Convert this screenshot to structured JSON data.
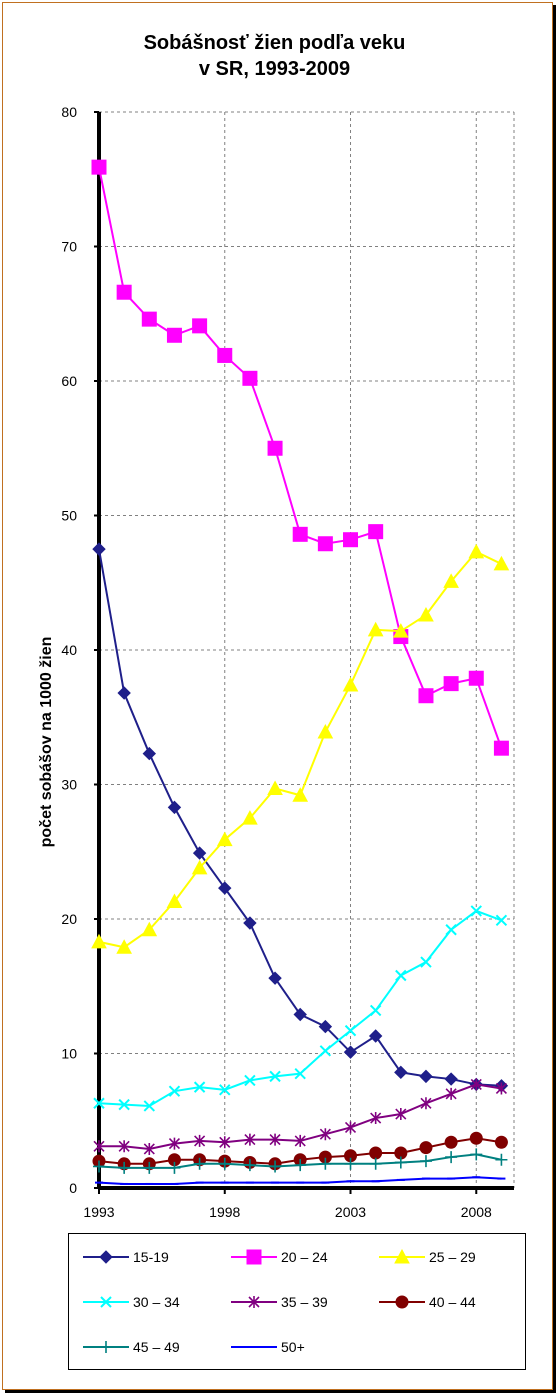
{
  "chart_data": {
    "type": "line",
    "title": [
      "Sobášnosť žien podľa veku",
      "v SR, 1993-2009"
    ],
    "ylabel": "počet sobášov na 1000 žien",
    "xlabel": "",
    "ylim": [
      0,
      80
    ],
    "yticks": [
      0,
      10,
      20,
      30,
      40,
      50,
      60,
      70,
      80
    ],
    "xlim": [
      1993,
      2009.5
    ],
    "xticks": [
      1993,
      1998,
      2003,
      2008
    ],
    "grid": "dashed",
    "legend_position": "bottom",
    "x": [
      1993,
      1994,
      1995,
      1996,
      1997,
      1998,
      1999,
      2000,
      2001,
      2002,
      2003,
      2004,
      2005,
      2006,
      2007,
      2008,
      2009
    ],
    "series": [
      {
        "name": "15-19",
        "color": "#1f1f8a",
        "marker": "diamond",
        "values": [
          47.5,
          36.8,
          32.3,
          28.3,
          24.9,
          22.3,
          19.7,
          15.6,
          12.9,
          12.0,
          10.1,
          11.3,
          8.6,
          8.3,
          8.1,
          7.7,
          7.6
        ]
      },
      {
        "name": "20 – 24",
        "color": "#ff00ff",
        "marker": "square",
        "values": [
          75.9,
          66.6,
          64.6,
          63.4,
          64.1,
          61.9,
          60.2,
          55.0,
          48.6,
          47.9,
          48.2,
          48.8,
          41.0,
          36.6,
          37.5,
          37.9,
          32.7
        ]
      },
      {
        "name": "25 – 29",
        "color": "#ffff00",
        "marker": "triangle",
        "values": [
          18.3,
          17.9,
          19.2,
          21.3,
          23.8,
          25.9,
          27.5,
          29.7,
          29.2,
          33.9,
          37.4,
          41.5,
          41.4,
          42.6,
          45.1,
          47.3,
          46.4
        ]
      },
      {
        "name": "30 – 34",
        "color": "#00ffff",
        "marker": "x",
        "values": [
          6.3,
          6.2,
          6.1,
          7.2,
          7.5,
          7.3,
          8.0,
          8.3,
          8.5,
          10.2,
          11.7,
          13.2,
          15.8,
          16.8,
          19.2,
          20.6,
          19.9
        ]
      },
      {
        "name": "35 – 39",
        "color": "#800080",
        "marker": "star",
        "values": [
          3.1,
          3.1,
          2.9,
          3.3,
          3.5,
          3.4,
          3.6,
          3.6,
          3.5,
          4.0,
          4.5,
          5.2,
          5.5,
          6.3,
          7.0,
          7.7,
          7.4
        ]
      },
      {
        "name": "40 – 44",
        "color": "#800000",
        "marker": "circle",
        "values": [
          2.0,
          1.8,
          1.8,
          2.1,
          2.1,
          2.0,
          1.9,
          1.8,
          2.1,
          2.3,
          2.4,
          2.6,
          2.6,
          3.0,
          3.4,
          3.7,
          3.4
        ]
      },
      {
        "name": "45 – 49",
        "color": "#008080",
        "marker": "plus",
        "values": [
          1.6,
          1.5,
          1.5,
          1.5,
          1.8,
          1.8,
          1.7,
          1.6,
          1.7,
          1.8,
          1.8,
          1.8,
          1.9,
          2.0,
          2.3,
          2.5,
          2.1
        ]
      },
      {
        "name": "50+",
        "color": "#0000ff",
        "marker": "dash",
        "values": [
          0.4,
          0.3,
          0.3,
          0.3,
          0.4,
          0.4,
          0.4,
          0.4,
          0.4,
          0.4,
          0.5,
          0.5,
          0.6,
          0.7,
          0.7,
          0.8,
          0.7
        ]
      }
    ]
  }
}
